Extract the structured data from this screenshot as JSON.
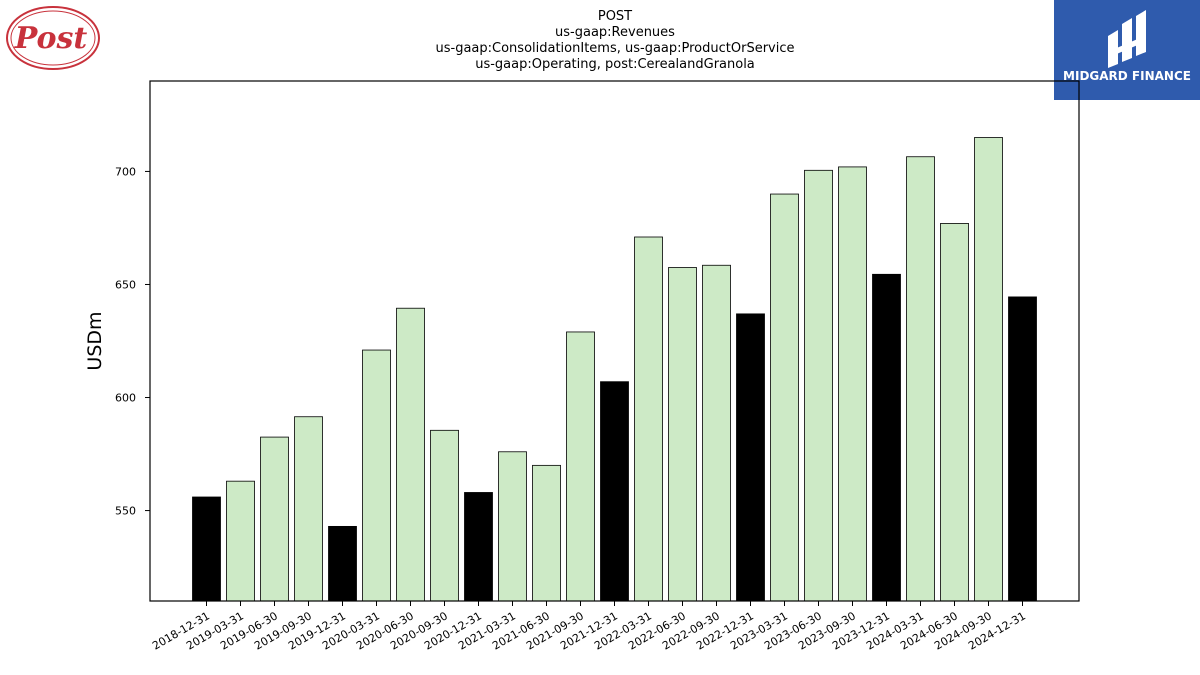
{
  "header": {
    "title_lines": [
      "POST",
      "us-gaap:Revenues",
      "us-gaap:ConsolidationItems, us-gaap:ProductOrService",
      "us-gaap:Operating, post:CerealandGranola"
    ]
  },
  "logos": {
    "left": {
      "text": "Post",
      "color": "#c8323c"
    },
    "right": {
      "text": "MIDGARD FINANCE",
      "color": "#2f5bad"
    }
  },
  "chart_data": {
    "type": "bar",
    "ylabel": "USDm",
    "xlabel": "",
    "ylim": [
      510,
      740
    ],
    "yticks": [
      550,
      600,
      650,
      700
    ],
    "grid": false,
    "categories": [
      "2018-12-31",
      "2019-03-31",
      "2019-06-30",
      "2019-09-30",
      "2019-12-31",
      "2020-03-31",
      "2020-06-30",
      "2020-09-30",
      "2020-12-31",
      "2021-03-31",
      "2021-06-30",
      "2021-09-30",
      "2021-12-31",
      "2022-03-31",
      "2022-06-30",
      "2022-09-30",
      "2022-12-31",
      "2023-03-31",
      "2023-06-30",
      "2023-09-30",
      "2023-12-31",
      "2024-03-31",
      "2024-06-30",
      "2024-09-30",
      "2024-12-31"
    ],
    "values": [
      556,
      563,
      582.5,
      591.5,
      543,
      621,
      639.5,
      585.5,
      558,
      576,
      570,
      629,
      607,
      671,
      657.5,
      658.5,
      637,
      690,
      700.5,
      702,
      654.5,
      706.5,
      677,
      715,
      644.5
    ],
    "colors": {
      "quarter_end_of_year": "#000000",
      "other_quarter": "#cdeac6",
      "edge": "#000000"
    }
  }
}
